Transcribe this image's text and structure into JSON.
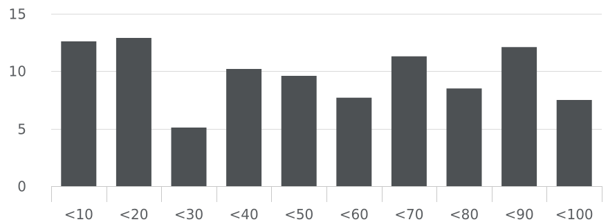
{
  "chart_data": {
    "type": "bar",
    "title": "",
    "xlabel": "",
    "ylabel": "",
    "categories": [
      "<10",
      "<20",
      "<30",
      "<40",
      "<50",
      "<60",
      "<70",
      "<80",
      "<90",
      "<100"
    ],
    "values": [
      12.6,
      12.9,
      5.1,
      10.2,
      9.6,
      7.7,
      11.3,
      8.5,
      12.1,
      7.5
    ],
    "ylim": [
      0,
      15
    ],
    "yticks": [
      0,
      5,
      10,
      15
    ],
    "ytick_labels": [
      "0",
      "5",
      "10",
      "15"
    ],
    "grid": true,
    "legend": "none",
    "bar_color": "#4d5154",
    "grid_color": "#d9d9d9",
    "axis_color": "#c8c8c8",
    "label_color": "#5a5d60"
  }
}
